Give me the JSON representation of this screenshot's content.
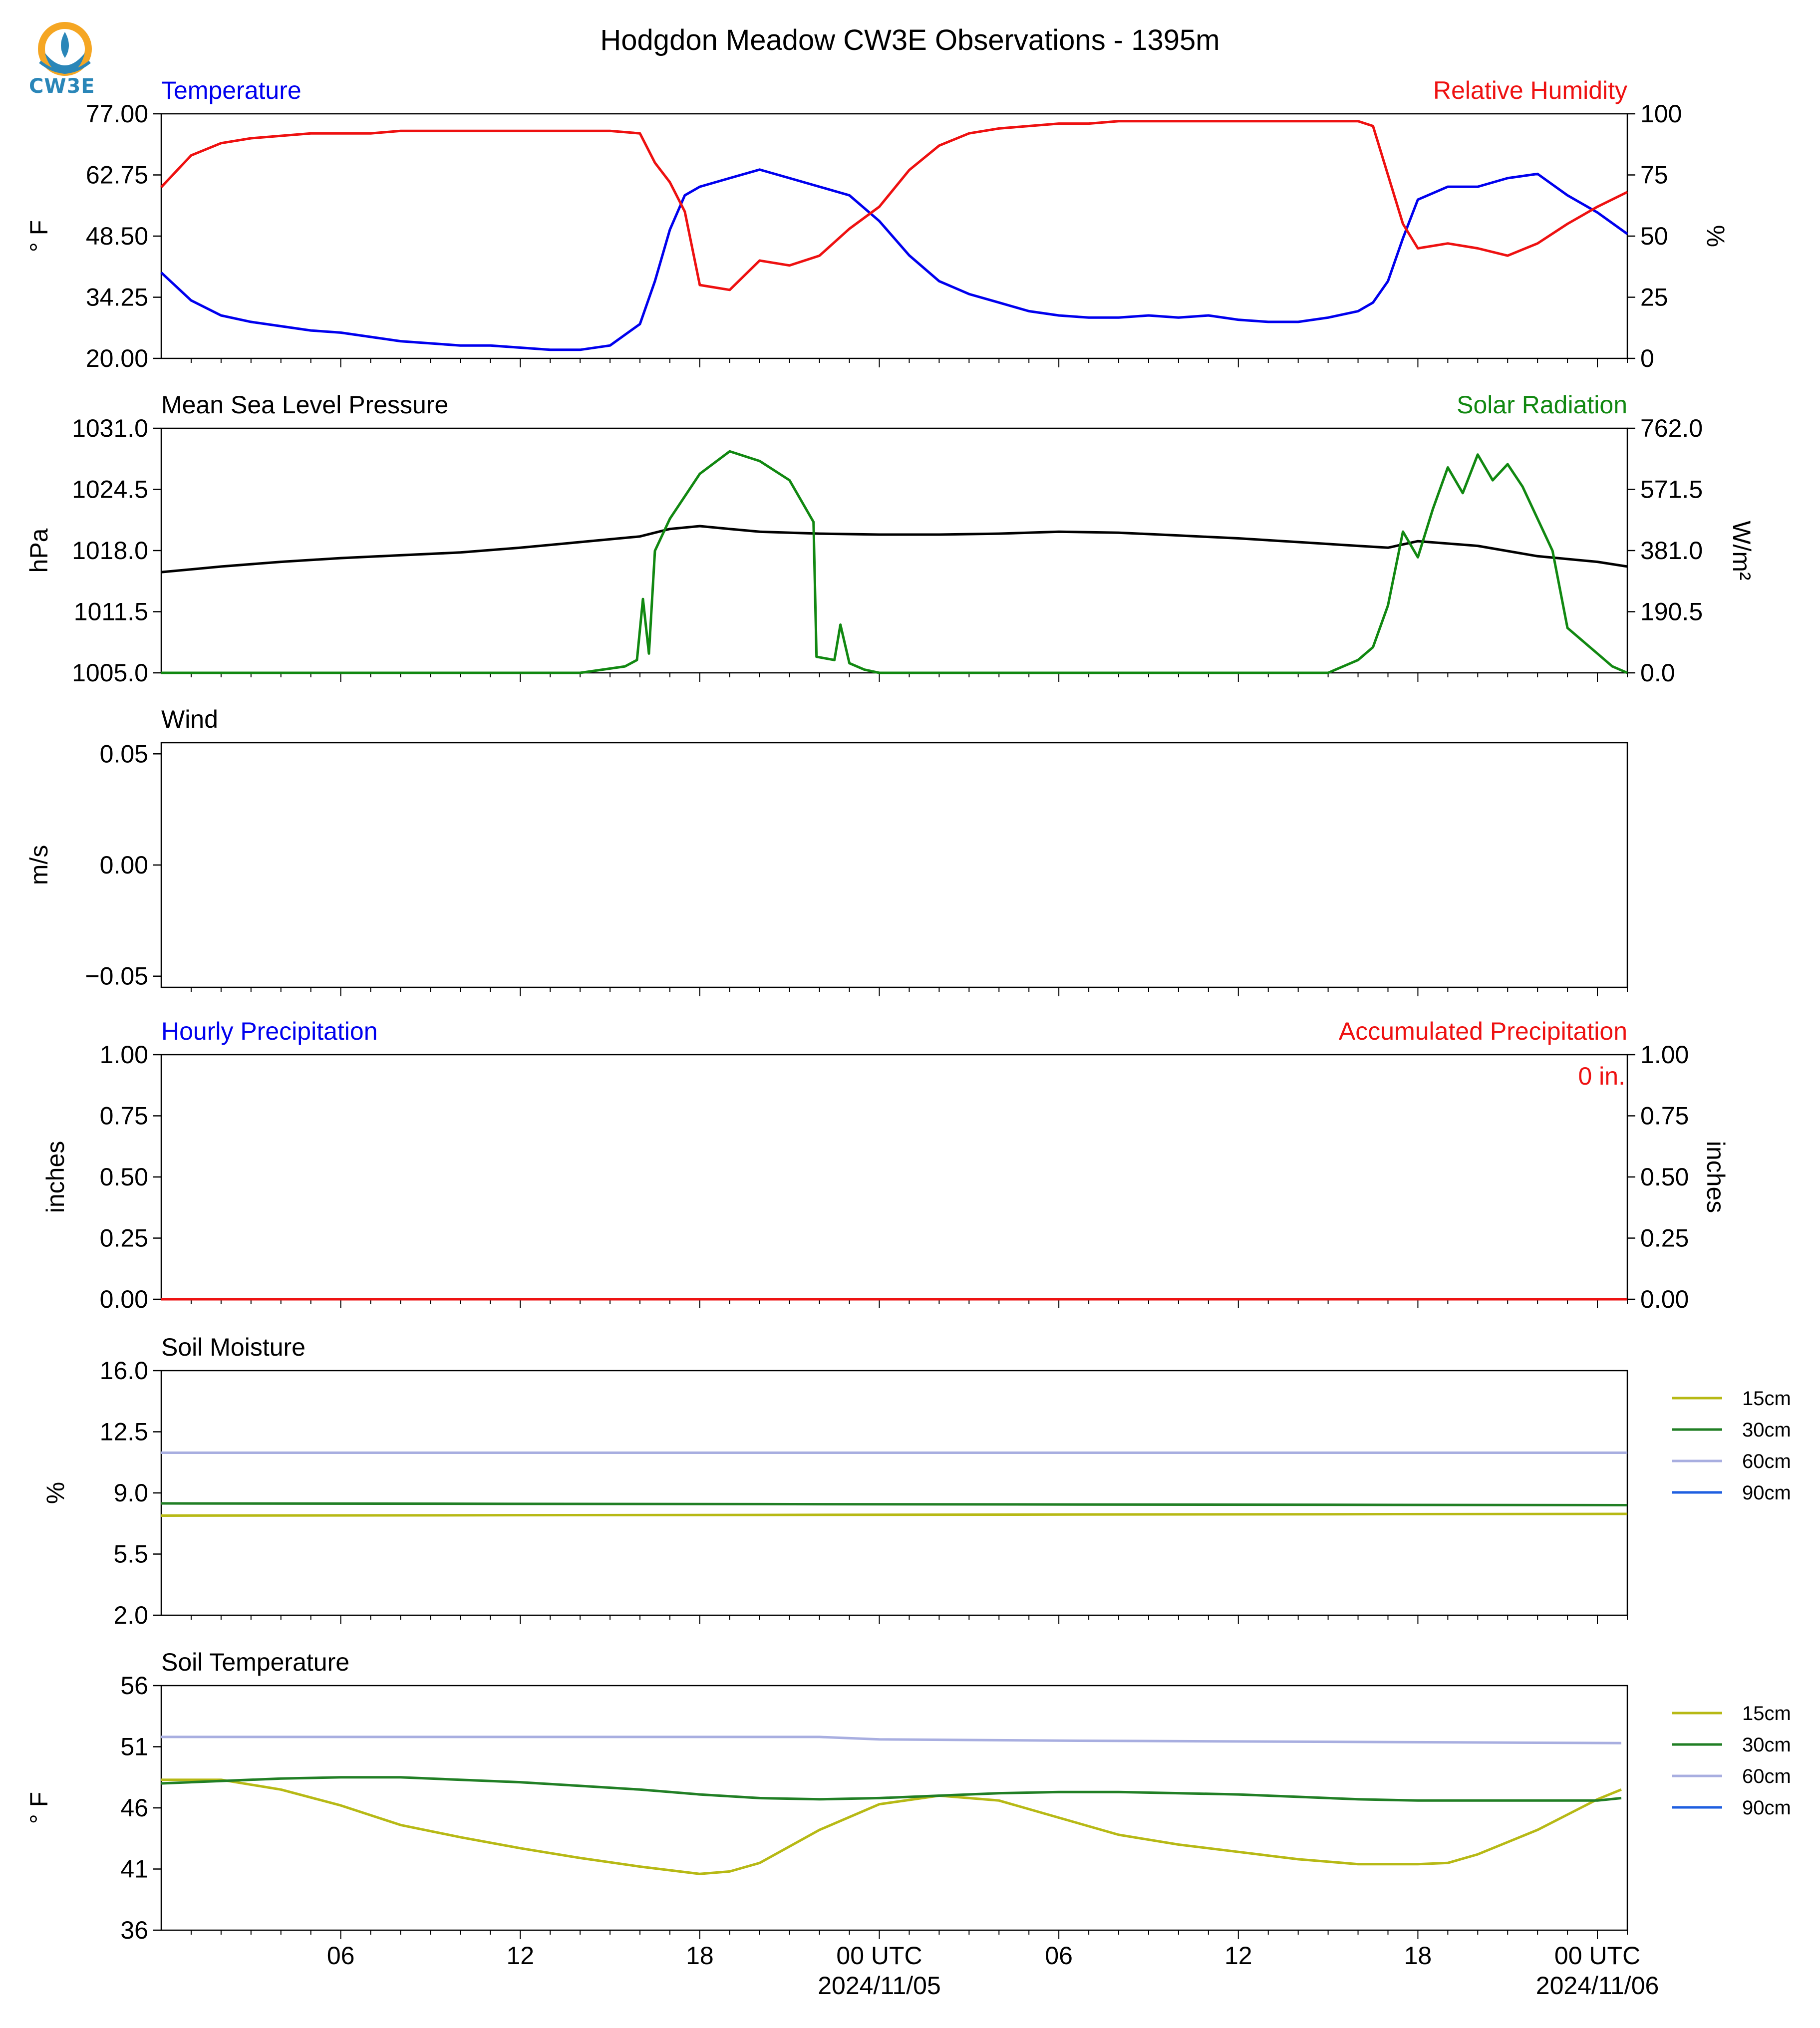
{
  "title": "Hodgdon Meadow CW3E Observations - 1395m",
  "logo_text": "CW3E",
  "colors": {
    "blue": "#0000ee",
    "red": "#ee1111",
    "green": "#118811",
    "black": "#000000",
    "s15": "#b7b915",
    "s30": "#217f25",
    "s60": "#a8aee0",
    "s90": "#1f5fe0"
  },
  "time_axis": {
    "start": "2024-11-04 00:00 UTC",
    "end": "2024-11-06 01:00 UTC",
    "tick_labels": [
      "06",
      "12",
      "18",
      "00 UTC",
      "06",
      "12",
      "18",
      "00 UTC"
    ],
    "date_labels": [
      "2024/11/05",
      "2024/11/06"
    ]
  },
  "chart_data": [
    {
      "type": "line",
      "name": "temperature_rh",
      "left_title": "Temperature",
      "right_title": "Relative Humidity",
      "ylabel": "° F",
      "ylabel_right": "%",
      "yticks": [
        "77.00",
        "62.75",
        "48.50",
        "34.25",
        "20.00"
      ],
      "yticks_right": [
        "100",
        "75",
        "50",
        "25",
        "0"
      ],
      "ylim": [
        20,
        77
      ],
      "ylim_right": [
        0,
        100
      ],
      "x_hours": [
        0,
        1,
        2,
        3,
        4,
        5,
        6,
        7,
        8,
        9,
        10,
        11,
        12,
        13,
        14,
        15,
        16,
        16.5,
        17,
        17.5,
        18,
        19,
        20,
        21,
        22,
        23,
        24,
        25,
        26,
        27,
        28,
        29,
        30,
        31,
        32,
        33,
        34,
        35,
        36,
        37,
        38,
        39,
        40,
        40.5,
        41,
        41.5,
        42,
        43,
        44,
        45,
        46,
        47,
        48,
        49
      ],
      "series": [
        {
          "name": "Temperature",
          "axis": "left",
          "color": "blue",
          "y": [
            40,
            33.5,
            30,
            28.5,
            27.5,
            26.5,
            26,
            25,
            24,
            23.5,
            23,
            23,
            22.5,
            22,
            22,
            23,
            28,
            38,
            50,
            58,
            60,
            62,
            64,
            62,
            60,
            58,
            52,
            44,
            38,
            35,
            33,
            31,
            30,
            29.5,
            29.5,
            30,
            29.5,
            30,
            29,
            28.5,
            28.5,
            29.5,
            31,
            33,
            38,
            48,
            57,
            60,
            60,
            62,
            63,
            58,
            54,
            49
          ]
        },
        {
          "name": "Relative Humidity",
          "axis": "right",
          "color": "red",
          "y": [
            70,
            83,
            88,
            90,
            91,
            92,
            92,
            92,
            93,
            93,
            93,
            93,
            93,
            93,
            93,
            93,
            92,
            80,
            72,
            60,
            30,
            28,
            40,
            38,
            42,
            53,
            62,
            77,
            87,
            92,
            94,
            95,
            96,
            96,
            97,
            97,
            97,
            97,
            97,
            97,
            97,
            97,
            97,
            95,
            75,
            55,
            45,
            47,
            45,
            42,
            47,
            55,
            62,
            68
          ]
        }
      ]
    },
    {
      "type": "line",
      "name": "pressure_solar",
      "left_title": "Mean Sea Level Pressure",
      "right_title": "Solar Radiation",
      "ylabel": "hPa",
      "ylabel_right": "W/m²",
      "yticks": [
        "1031.0",
        "1024.5",
        "1018.0",
        "1011.5",
        "1005.0"
      ],
      "yticks_right": [
        "762.0",
        "571.5",
        "381.0",
        "190.5",
        "0.0"
      ],
      "ylim": [
        1005,
        1031
      ],
      "ylim_right": [
        0,
        762
      ],
      "series": [
        {
          "name": "Mean Sea Level Pressure",
          "axis": "left",
          "color": "black",
          "x": [
            0,
            2,
            4,
            6,
            8,
            10,
            12,
            14,
            16,
            17,
            18,
            19,
            20,
            22,
            24,
            26,
            28,
            30,
            32,
            34,
            36,
            38,
            40,
            41,
            42,
            44,
            46,
            48,
            49
          ],
          "y": [
            1015.7,
            1016.3,
            1016.8,
            1017.2,
            1017.5,
            1017.8,
            1018.3,
            1018.9,
            1019.5,
            1020.3,
            1020.6,
            1020.3,
            1020.0,
            1019.8,
            1019.7,
            1019.7,
            1019.8,
            1020.0,
            1019.9,
            1019.6,
            1019.3,
            1018.9,
            1018.5,
            1018.3,
            1019.0,
            1018.5,
            1017.4,
            1016.8,
            1016.3
          ]
        },
        {
          "name": "Solar Radiation",
          "axis": "right",
          "color": "green",
          "x": [
            0,
            14,
            15.5,
            15.9,
            16.1,
            16.3,
            16.5,
            17,
            18,
            19,
            20,
            21,
            21.8,
            21.9,
            22.5,
            22.7,
            23,
            23.5,
            24,
            26,
            28,
            30,
            32,
            34,
            36,
            38,
            39,
            40,
            40.5,
            41,
            41.5,
            42,
            42.5,
            43,
            43.5,
            44,
            44.5,
            45,
            45.5,
            46,
            46.5,
            47,
            47.5,
            48,
            48.5,
            49
          ],
          "y": [
            0,
            0,
            20,
            40,
            230,
            60,
            380,
            480,
            620,
            690,
            660,
            600,
            470,
            50,
            40,
            150,
            30,
            10,
            0,
            0,
            0,
            0,
            0,
            0,
            0,
            0,
            0,
            40,
            80,
            210,
            440,
            360,
            510,
            640,
            560,
            680,
            600,
            650,
            580,
            480,
            380,
            140,
            100,
            60,
            20,
            0
          ]
        }
      ]
    },
    {
      "type": "line",
      "name": "wind",
      "left_title": "Wind",
      "ylabel": "m/s",
      "yticks": [
        "0.05",
        "0.00",
        "−0.05"
      ],
      "ylim": [
        -0.055,
        0.055
      ],
      "series": []
    },
    {
      "type": "line",
      "name": "precipitation",
      "left_title": "Hourly Precipitation",
      "right_title": "Accumulated Precipitation",
      "annotation": "0 in.",
      "ylabel": "inches",
      "ylabel_right": "inches",
      "yticks": [
        "1.00",
        "0.75",
        "0.50",
        "0.25",
        "0.00"
      ],
      "yticks_right": [
        "1.00",
        "0.75",
        "0.50",
        "0.25",
        "0.00"
      ],
      "ylim": [
        0,
        1
      ],
      "series": [
        {
          "name": "Accumulated Precipitation",
          "axis": "right",
          "color": "red",
          "x": [
            0,
            49
          ],
          "y": [
            0,
            0
          ]
        }
      ]
    },
    {
      "type": "line",
      "name": "soil_moisture",
      "left_title": "Soil Moisture",
      "ylabel": "%",
      "yticks": [
        "16.0",
        "12.5",
        "9.0",
        "5.5",
        "2.0"
      ],
      "ylim": [
        2,
        16
      ],
      "legend": [
        "15cm",
        "30cm",
        "60cm",
        "90cm"
      ],
      "series": [
        {
          "name": "15cm",
          "color": "s15",
          "x": [
            0,
            49
          ],
          "y": [
            7.7,
            7.8
          ]
        },
        {
          "name": "30cm",
          "color": "s30",
          "x": [
            0,
            49
          ],
          "y": [
            8.4,
            8.3
          ]
        },
        {
          "name": "60cm",
          "color": "s60",
          "x": [
            0,
            49
          ],
          "y": [
            11.3,
            11.3
          ]
        }
      ]
    },
    {
      "type": "line",
      "name": "soil_temperature",
      "left_title": "Soil Temperature",
      "ylabel": "° F",
      "yticks": [
        "56",
        "51",
        "46",
        "41",
        "36"
      ],
      "ylim": [
        36,
        56
      ],
      "legend": [
        "15cm",
        "30cm",
        "60cm",
        "90cm"
      ],
      "series": [
        {
          "name": "15cm",
          "color": "s15",
          "x": [
            0,
            2,
            4,
            6,
            8,
            10,
            12,
            14,
            16,
            18,
            19,
            20,
            22,
            24,
            26,
            28,
            30,
            32,
            34,
            36,
            38,
            40,
            42,
            43,
            44,
            46,
            48,
            48.8
          ],
          "y": [
            48.3,
            48.3,
            47.5,
            46.2,
            44.6,
            43.6,
            42.7,
            41.9,
            41.2,
            40.6,
            40.8,
            41.5,
            44.2,
            46.3,
            47.0,
            46.6,
            45.2,
            43.8,
            43.0,
            42.4,
            41.8,
            41.4,
            41.4,
            41.5,
            42.2,
            44.2,
            46.7,
            47.5
          ]
        },
        {
          "name": "30cm",
          "color": "s30",
          "x": [
            0,
            2,
            4,
            6,
            8,
            10,
            12,
            14,
            16,
            18,
            20,
            22,
            24,
            26,
            28,
            30,
            32,
            34,
            36,
            38,
            40,
            42,
            44,
            46,
            48,
            48.8
          ],
          "y": [
            48.0,
            48.2,
            48.4,
            48.5,
            48.5,
            48.3,
            48.1,
            47.8,
            47.5,
            47.1,
            46.8,
            46.7,
            46.8,
            47.0,
            47.2,
            47.3,
            47.3,
            47.2,
            47.1,
            46.9,
            46.7,
            46.6,
            46.6,
            46.6,
            46.6,
            46.8
          ]
        },
        {
          "name": "60cm",
          "color": "s60",
          "x": [
            0,
            22,
            24,
            30,
            48.8
          ],
          "y": [
            51.8,
            51.8,
            51.6,
            51.5,
            51.3
          ]
        }
      ]
    }
  ]
}
